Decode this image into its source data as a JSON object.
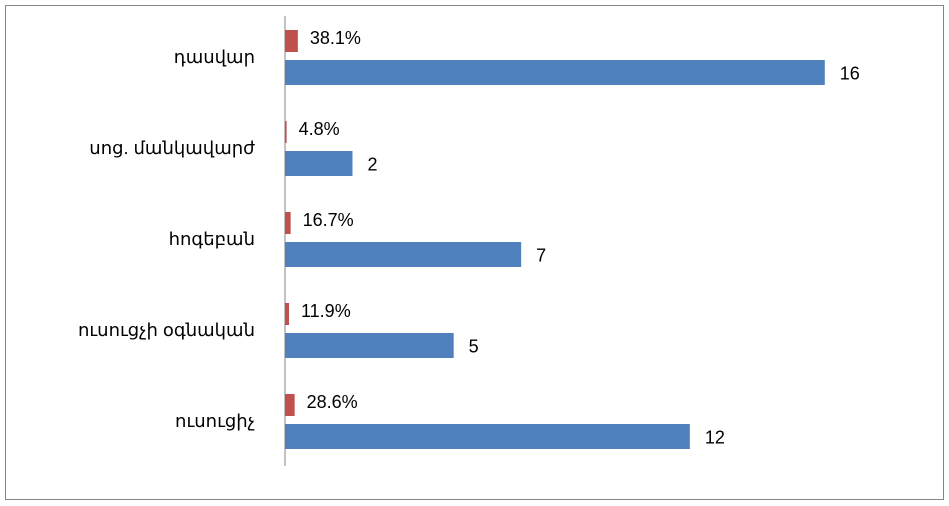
{
  "chart_data": {
    "type": "bar",
    "orientation": "horizontal",
    "categories": [
      "դասվար",
      "սոց. մանկավարժ",
      "հոգեբան",
      "ուսուցչի օգնական",
      "ուսուցիչ"
    ],
    "series": [
      {
        "color": "#c0504d",
        "axis": "x2",
        "values": [
          38.1,
          4.8,
          16.7,
          11.9,
          28.6
        ],
        "value_labels": [
          "38.1%",
          "4.8%",
          "16.7%",
          "11.9%",
          "28.6%"
        ]
      },
      {
        "color": "#4f81bd",
        "values": [
          16,
          2,
          7,
          5,
          12
        ]
      }
    ],
    "xlim": [
      0,
      19
    ],
    "x2lim": [
      0,
      1900
    ]
  }
}
